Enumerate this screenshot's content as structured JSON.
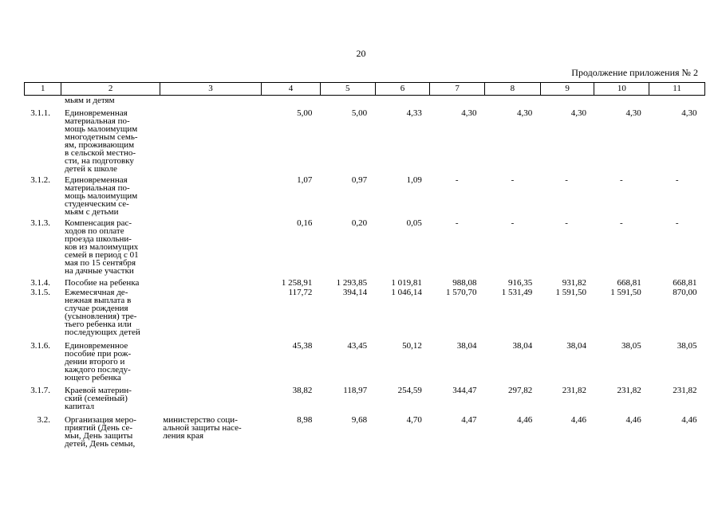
{
  "page_number": "20",
  "continuation_label": "Продолжение приложения № 2",
  "header": [
    "1",
    "2",
    "3",
    "4",
    "5",
    "6",
    "7",
    "8",
    "9",
    "10",
    "11"
  ],
  "continued_text": [
    "мьям и детям"
  ],
  "rows": [
    {
      "code": "3.1.1.",
      "name": [
        "Единовременная",
        "материальная по-",
        "мощь малоимущим",
        "многодетным семь-",
        "ям, проживающим",
        "в сельской местно-",
        "сти, на подготовку",
        "детей к школе"
      ],
      "executor": [],
      "values": [
        "5,00",
        "5,00",
        "4,33",
        "4,30",
        "4,30",
        "4,30",
        "4,30",
        "4,30"
      ]
    },
    {
      "code": "3.1.2.",
      "name": [
        "Единовременная",
        "материальная по-",
        "мощь малоимущим",
        "студенческим се-",
        "мьям с детьми"
      ],
      "executor": [],
      "values": [
        "1,07",
        "0,97",
        "1,09",
        "-",
        "-",
        "-",
        "-",
        "-"
      ]
    },
    {
      "code": "3.1.3.",
      "name": [
        "Компенсация рас-",
        "ходов по оплате",
        "проезда школьни-",
        "ков из малоимущих",
        "семей в период с 01",
        "мая по 15 сентября",
        "на дачные участки"
      ],
      "executor": [],
      "values": [
        "0,16",
        "0,20",
        "0,05",
        "-",
        "-",
        "-",
        "-",
        "-"
      ]
    },
    {
      "code": "3.1.4.",
      "name": [
        "Пособие на ребенка"
      ],
      "executor": [],
      "values": [
        "1 258,91",
        "1 293,85",
        "1 019,81",
        "988,08",
        "916,35",
        "931,82",
        "668,81",
        "668,81"
      ]
    },
    {
      "code": "3.1.5.",
      "name": [
        "Ежемесячная де-",
        "нежная выплата в",
        "случае рождения",
        "(усыновления) тре-",
        "тьего ребенка или",
        "последующих детей"
      ],
      "executor": [],
      "values": [
        "117,72",
        "394,14",
        "1 046,14",
        "1 570,70",
        "1 531,49",
        "1 591,50",
        "1 591,50",
        "870,00"
      ]
    },
    {
      "code": "3.1.6.",
      "name": [
        "Единовременное",
        "пособие при рож-",
        "дении второго и",
        "каждого последу-",
        "ющего ребенка"
      ],
      "executor": [],
      "values": [
        "45,38",
        "43,45",
        "50,12",
        "38,04",
        "38,04",
        "38,04",
        "38,05",
        "38,05"
      ]
    },
    {
      "code": "3.1.7.",
      "name": [
        "Краевой материн-",
        "ский (семейный)",
        "капитал"
      ],
      "executor": [],
      "values": [
        "38,82",
        "118,97",
        "254,59",
        "344,47",
        "297,82",
        "231,82",
        "231,82",
        "231,82"
      ]
    },
    {
      "code": "3.2.",
      "name": [
        "Организация меро-",
        "приятий (День се-",
        "мьи, День защиты",
        "детей, День семьи,"
      ],
      "executor": [
        "министерство соци-",
        "альной защиты насе-",
        "ления края"
      ],
      "values": [
        "8,98",
        "9,68",
        "4,70",
        "4,47",
        "4,46",
        "4,46",
        "4,46",
        "4,46"
      ]
    }
  ]
}
